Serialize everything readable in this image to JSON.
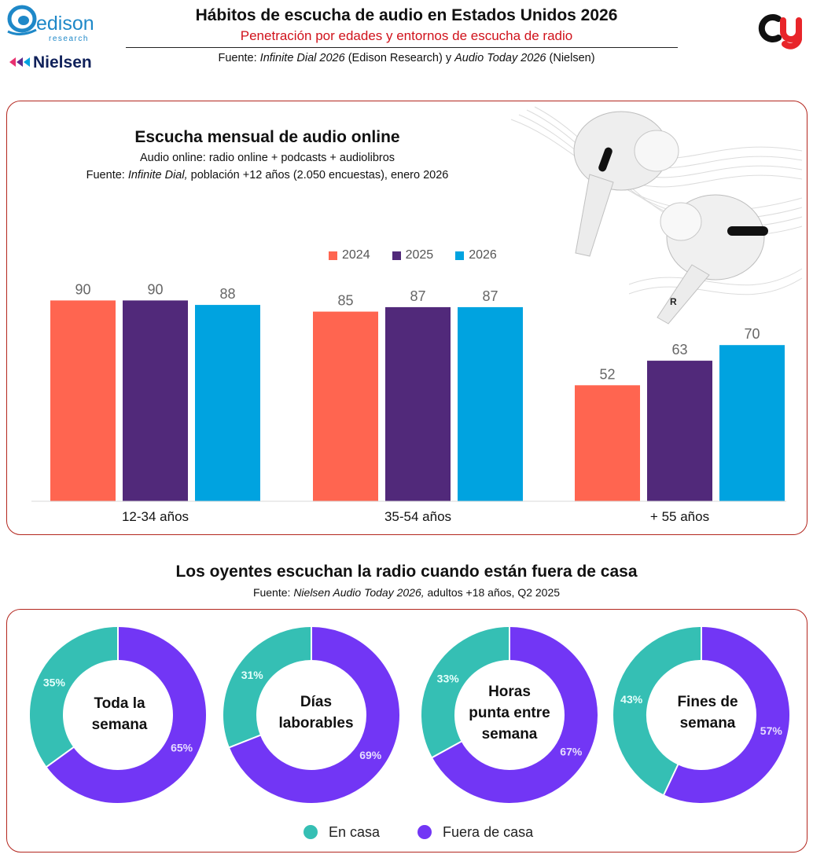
{
  "header": {
    "title": "Hábitos de escucha de audio en Estados Unidos 2026",
    "subtitle": "Penetración por edades y entornos de escucha de radio",
    "source_prefix": "Fuente: ",
    "source_pub1": "Infinite Dial 2026",
    "source_mid": " (Edison Research) y ",
    "source_pub2": "Audio Today 2026",
    "source_end": " (Nielsen)"
  },
  "logos": {
    "edison_main": "edison",
    "edison_sub": "research",
    "nielsen": "Nielsen"
  },
  "colors": {
    "y2024": "#ff6550",
    "y2025": "#51297a",
    "y2026": "#00a3e0",
    "home": "#35bfb4",
    "away": "#7236f5",
    "panel_border": "#b3261e",
    "accent_red": "#d0121b"
  },
  "chart_data": [
    {
      "type": "bar",
      "title": "Escucha mensual de audio online",
      "subtitle": "Audio online: radio online + podcasts + audiolibros",
      "source_prefix": "Fuente: ",
      "source_pub": "Infinite Dial,",
      "source_rest": " población +12 años (2.050 encuestas), enero 2026",
      "categories": [
        "12-34 años",
        "35-54 años",
        "+ 55 años"
      ],
      "series": [
        {
          "name": "2024",
          "values": [
            90,
            85,
            52
          ]
        },
        {
          "name": "2025",
          "values": [
            90,
            87,
            63
          ]
        },
        {
          "name": "2026",
          "values": [
            88,
            87,
            70
          ]
        }
      ],
      "ylim": [
        0,
        100
      ],
      "xlabel": "",
      "ylabel": "",
      "legend": "top-right"
    },
    {
      "type": "pie",
      "title": "Los oyentes escuchan la radio cuando están fuera de casa",
      "source_prefix": "Fuente: ",
      "source_pub": "Nielsen Audio Today 2026,",
      "source_rest": " adultos +18 años, Q2 2025",
      "legend": [
        "En casa",
        "Fuera de casa"
      ],
      "charts": [
        {
          "label_lines": [
            "Toda la",
            "semana"
          ],
          "en_casa": 35,
          "fuera_de_casa": 65
        },
        {
          "label_lines": [
            "Días",
            "laborables"
          ],
          "en_casa": 31,
          "fuera_de_casa": 69
        },
        {
          "label_lines": [
            "Horas",
            "punta entre",
            "semana"
          ],
          "en_casa": 33,
          "fuera_de_casa": 67
        },
        {
          "label_lines": [
            "Fines de",
            "semana"
          ],
          "en_casa": 43,
          "fuera_de_casa": 57
        }
      ]
    }
  ]
}
